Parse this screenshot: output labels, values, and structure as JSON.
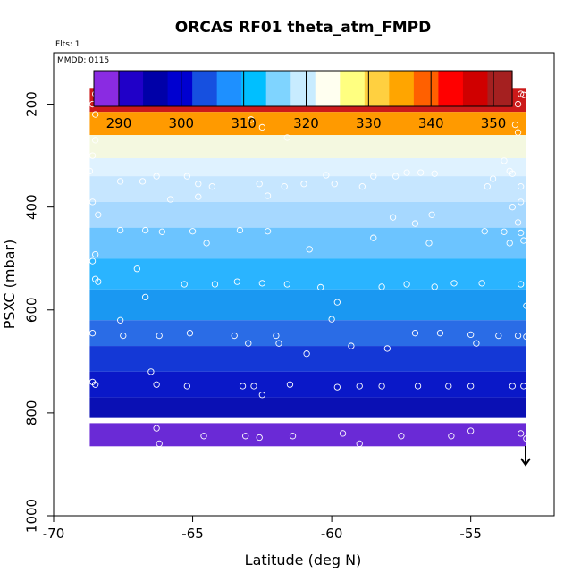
{
  "chart_data": {
    "type": "heatmap",
    "title": "ORCAS RF01 theta_atm_FMPD",
    "annotations": {
      "flights": "Flts: 1",
      "date": "MMDD: 0115"
    },
    "xlabel": "Latitude (deg N)",
    "ylabel": "PSXC (mbar)",
    "xlim": [
      -70,
      -52
    ],
    "ylim": [
      1000,
      100
    ],
    "x_ticks": [
      -70,
      -65,
      -60,
      -55
    ],
    "y_ticks": [
      200,
      400,
      600,
      800,
      1000
    ],
    "colorbar": {
      "range": [
        286,
        353
      ],
      "ticks": [
        290,
        300,
        310,
        320,
        330,
        340,
        350
      ],
      "colors": [
        "#8a2be2",
        "#2000c8",
        "#0000a8",
        "#0000d0",
        "#1650e0",
        "#1e90ff",
        "#00bfff",
        "#7fd4ff",
        "#c8ecff",
        "#fffff0",
        "#ffff80",
        "#ffd040",
        "#ffa500",
        "#ff6000",
        "#ff0000",
        "#d00000",
        "#a52020"
      ]
    },
    "lat_range": [
      -68.7,
      -53.0
    ],
    "arrow_label_position": "bottom-right",
    "bands": [
      {
        "p_top": 170,
        "p_bot": 215,
        "theta": 347.0,
        "color": "#cc1a1a"
      },
      {
        "p_top": 215,
        "p_bot": 260,
        "theta": 336.0,
        "color": "#ff9a00"
      },
      {
        "p_top": 260,
        "p_bot": 305,
        "theta": 325.0,
        "color": "#f4f8e0"
      },
      {
        "p_top": 305,
        "p_bot": 340,
        "theta": 320.0,
        "color": "#dff2ff"
      },
      {
        "p_top": 340,
        "p_bot": 390,
        "theta": 318.0,
        "color": "#c6e6ff"
      },
      {
        "p_top": 390,
        "p_bot": 440,
        "theta": 316.0,
        "color": "#a6d8ff"
      },
      {
        "p_top": 440,
        "p_bot": 500,
        "theta": 313.0,
        "color": "#6cc4ff"
      },
      {
        "p_top": 500,
        "p_bot": 560,
        "theta": 311.0,
        "color": "#2ab4ff"
      },
      {
        "p_top": 560,
        "p_bot": 620,
        "theta": 308.5,
        "color": "#1a98f2"
      },
      {
        "p_top": 620,
        "p_bot": 670,
        "theta": 306.0,
        "color": "#2a6ce6"
      },
      {
        "p_top": 670,
        "p_bot": 720,
        "theta": 303.0,
        "color": "#1438d6"
      },
      {
        "p_top": 720,
        "p_bot": 770,
        "theta": 300.0,
        "color": "#0a18c8"
      },
      {
        "p_top": 770,
        "p_bot": 810,
        "theta": 297.5,
        "color": "#0a10b4"
      },
      {
        "p_top": 820,
        "p_bot": 865,
        "theta": 290.0,
        "color": "#6a2ad6"
      }
    ],
    "points": [
      [
        -68.5,
        180
      ],
      [
        -68.0,
        180
      ],
      [
        -67.5,
        180
      ],
      [
        -67.0,
        180
      ],
      [
        -66.5,
        180
      ],
      [
        -66.0,
        180
      ],
      [
        -65.5,
        180
      ],
      [
        -65.0,
        180
      ],
      [
        -64.5,
        180
      ],
      [
        -64.0,
        180
      ],
      [
        -63.5,
        190
      ],
      [
        -63.2,
        198
      ],
      [
        -61.0,
        188
      ],
      [
        -60.8,
        178
      ],
      [
        -60.2,
        180
      ],
      [
        -59.6,
        180
      ],
      [
        -59.0,
        180
      ],
      [
        -58.4,
        180
      ],
      [
        -57.9,
        180
      ],
      [
        -57.2,
        180
      ],
      [
        -56.6,
        180
      ],
      [
        -56.0,
        180
      ],
      [
        -55.5,
        180
      ],
      [
        -54.9,
        180
      ],
      [
        -54.3,
        195
      ],
      [
        -53.2,
        180
      ],
      [
        -53.1,
        182
      ],
      [
        -68.6,
        200
      ],
      [
        -68.5,
        220
      ],
      [
        -53.3,
        200
      ],
      [
        -62.9,
        230
      ],
      [
        -62.5,
        245
      ],
      [
        -53.4,
        240
      ],
      [
        -53.3,
        255
      ],
      [
        -68.5,
        270
      ],
      [
        -61.6,
        265
      ],
      [
        -68.7,
        330
      ],
      [
        -68.6,
        300
      ],
      [
        -67.6,
        350
      ],
      [
        -66.8,
        350
      ],
      [
        -66.3,
        340
      ],
      [
        -65.2,
        340
      ],
      [
        -64.8,
        355
      ],
      [
        -62.6,
        355
      ],
      [
        -61.7,
        360
      ],
      [
        -60.2,
        338
      ],
      [
        -59.9,
        355
      ],
      [
        -58.5,
        340
      ],
      [
        -57.3,
        333
      ],
      [
        -56.8,
        333
      ],
      [
        -56.3,
        335
      ],
      [
        -54.2,
        345
      ],
      [
        -53.5,
        335
      ],
      [
        -53.8,
        310
      ],
      [
        -64.3,
        360
      ],
      [
        -64.8,
        380
      ],
      [
        -53.2,
        390
      ],
      [
        -68.6,
        390
      ],
      [
        -65.8,
        385
      ],
      [
        -62.3,
        378
      ],
      [
        -61.0,
        355
      ],
      [
        -58.9,
        360
      ],
      [
        -57.7,
        340
      ],
      [
        -57.8,
        420
      ],
      [
        -56.4,
        415
      ],
      [
        -53.5,
        400
      ],
      [
        -53.6,
        330
      ],
      [
        -53.2,
        360
      ],
      [
        -54.4,
        360
      ],
      [
        -53.3,
        430
      ],
      [
        -68.4,
        415
      ],
      [
        -67.6,
        445
      ],
      [
        -66.7,
        445
      ],
      [
        -66.1,
        448
      ],
      [
        -65.0,
        447
      ],
      [
        -64.5,
        470
      ],
      [
        -63.3,
        445
      ],
      [
        -62.3,
        447
      ],
      [
        -60.8,
        482
      ],
      [
        -58.5,
        460
      ],
      [
        -57.0,
        432
      ],
      [
        -56.5,
        470
      ],
      [
        -54.5,
        447
      ],
      [
        -53.8,
        448
      ],
      [
        -53.2,
        450
      ],
      [
        -53.6,
        470
      ],
      [
        -53.1,
        465
      ],
      [
        -68.5,
        492
      ],
      [
        -68.6,
        505
      ],
      [
        -68.5,
        540
      ],
      [
        -68.4,
        545
      ],
      [
        -67.0,
        520
      ],
      [
        -66.7,
        575
      ],
      [
        -65.3,
        550
      ],
      [
        -64.2,
        550
      ],
      [
        -63.4,
        545
      ],
      [
        -62.5,
        548
      ],
      [
        -61.6,
        550
      ],
      [
        -60.4,
        556
      ],
      [
        -59.8,
        585
      ],
      [
        -58.2,
        555
      ],
      [
        -57.3,
        550
      ],
      [
        -56.3,
        555
      ],
      [
        -55.6,
        548
      ],
      [
        -54.6,
        548
      ],
      [
        -53.2,
        550
      ],
      [
        -53.0,
        592
      ],
      [
        -68.6,
        645
      ],
      [
        -67.6,
        620
      ],
      [
        -67.5,
        650
      ],
      [
        -66.2,
        650
      ],
      [
        -65.1,
        645
      ],
      [
        -63.5,
        650
      ],
      [
        -63.0,
        665
      ],
      [
        -62.0,
        650
      ],
      [
        -61.9,
        665
      ],
      [
        -60.9,
        685
      ],
      [
        -60.0,
        618
      ],
      [
        -59.3,
        670
      ],
      [
        -58.0,
        675
      ],
      [
        -57.0,
        645
      ],
      [
        -56.1,
        645
      ],
      [
        -55.0,
        648
      ],
      [
        -54.8,
        665
      ],
      [
        -54.0,
        650
      ],
      [
        -53.3,
        650
      ],
      [
        -53.0,
        652
      ],
      [
        -68.5,
        745
      ],
      [
        -68.6,
        740
      ],
      [
        -66.5,
        720
      ],
      [
        -66.3,
        745
      ],
      [
        -65.2,
        748
      ],
      [
        -63.2,
        748
      ],
      [
        -62.8,
        748
      ],
      [
        -62.5,
        765
      ],
      [
        -61.5,
        745
      ],
      [
        -59.8,
        750
      ],
      [
        -59.0,
        748
      ],
      [
        -58.2,
        748
      ],
      [
        -56.9,
        748
      ],
      [
        -55.8,
        748
      ],
      [
        -55.0,
        748
      ],
      [
        -53.5,
        748
      ],
      [
        -53.1,
        748
      ],
      [
        -66.3,
        830
      ],
      [
        -66.2,
        860
      ],
      [
        -64.6,
        845
      ],
      [
        -63.1,
        845
      ],
      [
        -62.6,
        848
      ],
      [
        -61.4,
        845
      ],
      [
        -59.6,
        840
      ],
      [
        -59.0,
        860
      ],
      [
        -57.5,
        845
      ],
      [
        -55.7,
        845
      ],
      [
        -55.0,
        835
      ],
      [
        -53.2,
        840
      ],
      [
        -53.0,
        850
      ]
    ]
  }
}
